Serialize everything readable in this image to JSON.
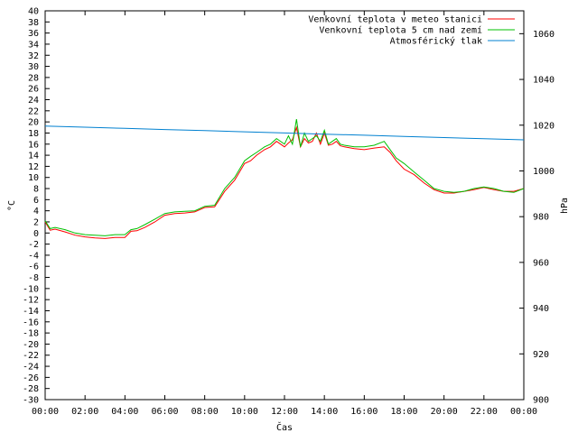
{
  "chart_data": {
    "type": "line",
    "xlabel": "Čas",
    "ylabel": "°C",
    "y2label": "hPa",
    "x_ticks": [
      "00:00",
      "02:00",
      "04:00",
      "06:00",
      "08:00",
      "10:00",
      "12:00",
      "14:00",
      "16:00",
      "18:00",
      "20:00",
      "22:00",
      "00:00"
    ],
    "xlim": [
      0,
      24
    ],
    "ylim": [
      -30,
      40
    ],
    "y_ticks": [
      40,
      38,
      36,
      34,
      32,
      30,
      28,
      26,
      24,
      22,
      20,
      18,
      16,
      14,
      12,
      10,
      8,
      6,
      4,
      2,
      0,
      -2,
      -4,
      -6,
      -8,
      -10,
      -12,
      -14,
      -16,
      -18,
      -20,
      -22,
      -24,
      -26,
      -28,
      -30
    ],
    "y2lim": [
      900,
      1070
    ],
    "y2_ticks": [
      1060,
      1040,
      1020,
      1000,
      980,
      960,
      940,
      920,
      900
    ],
    "grid": false,
    "legend_position": "top-right",
    "series": [
      {
        "name": "Venkovní teplota v meteo stanici",
        "color": "#ff0000",
        "axis": "left",
        "x": [
          0,
          0.25,
          0.5,
          1,
          1.5,
          2,
          2.5,
          3,
          3.5,
          4,
          4.3,
          4.6,
          5,
          5.5,
          6,
          6.5,
          7,
          7.5,
          8,
          8.5,
          9,
          9.5,
          10,
          10.3,
          10.6,
          11,
          11.3,
          11.6,
          12,
          12.2,
          12.4,
          12.6,
          12.8,
          13,
          13.2,
          13.4,
          13.6,
          13.8,
          14,
          14.2,
          14.4,
          14.6,
          14.8,
          15,
          15.5,
          16,
          16.5,
          17,
          17.3,
          17.6,
          18,
          18.5,
          19,
          19.5,
          20,
          20.5,
          21,
          21.5,
          22,
          22.5,
          23,
          23.5,
          24
        ],
        "values": [
          2.0,
          0.5,
          0.7,
          0.2,
          -0.4,
          -0.7,
          -0.9,
          -1.0,
          -0.8,
          -0.8,
          0.3,
          0.4,
          1.0,
          2.0,
          3.2,
          3.5,
          3.6,
          3.8,
          4.6,
          4.7,
          7.5,
          9.5,
          12.5,
          13.0,
          14.0,
          15.0,
          15.5,
          16.5,
          15.5,
          16.2,
          16.8,
          19.0,
          15.5,
          17.0,
          16.2,
          16.5,
          18.0,
          16.0,
          18.0,
          15.8,
          16.0,
          16.5,
          15.7,
          15.5,
          15.2,
          15.0,
          15.3,
          15.5,
          14.5,
          13.0,
          11.5,
          10.5,
          9.0,
          7.8,
          7.2,
          7.2,
          7.5,
          7.8,
          8.2,
          7.8,
          7.5,
          7.5,
          8.0
        ]
      },
      {
        "name": "Venkovní teplota 5 cm nad zemí",
        "color": "#00c000",
        "axis": "left",
        "x": [
          0,
          0.25,
          0.5,
          1,
          1.5,
          2,
          2.5,
          3,
          3.5,
          4,
          4.3,
          4.6,
          5,
          5.5,
          6,
          6.5,
          7,
          7.5,
          8,
          8.5,
          9,
          9.5,
          10,
          10.3,
          10.6,
          11,
          11.3,
          11.6,
          12,
          12.2,
          12.4,
          12.6,
          12.8,
          13,
          13.2,
          13.4,
          13.6,
          13.8,
          14,
          14.2,
          14.4,
          14.6,
          14.8,
          15,
          15.5,
          16,
          16.5,
          17,
          17.3,
          17.6,
          18,
          18.5,
          19,
          19.5,
          20,
          20.5,
          21,
          21.5,
          22,
          22.5,
          23,
          23.5,
          24
        ],
        "values": [
          2.2,
          0.8,
          1.0,
          0.6,
          0.0,
          -0.3,
          -0.4,
          -0.5,
          -0.3,
          -0.3,
          0.6,
          0.8,
          1.5,
          2.5,
          3.5,
          3.8,
          3.9,
          4.0,
          4.8,
          5.0,
          8.0,
          10.0,
          13.0,
          13.8,
          14.5,
          15.5,
          16.0,
          17.0,
          16.0,
          17.5,
          16.0,
          20.5,
          15.5,
          18.0,
          16.5,
          17.0,
          17.5,
          16.5,
          18.5,
          16.0,
          16.5,
          17.0,
          16.0,
          15.8,
          15.5,
          15.5,
          15.8,
          16.5,
          15.0,
          13.5,
          12.5,
          11.0,
          9.5,
          8.0,
          7.5,
          7.3,
          7.5,
          8.0,
          8.3,
          8.0,
          7.5,
          7.3,
          8.0
        ]
      },
      {
        "name": "Atmosférický tlak",
        "color": "#0080d0",
        "axis": "right",
        "x": [
          0,
          2,
          4,
          6,
          8,
          10,
          12,
          14,
          16,
          18,
          20,
          22,
          24
        ],
        "values": [
          1019.6,
          1019.1,
          1018.6,
          1018.1,
          1017.6,
          1017.1,
          1016.6,
          1016.1,
          1015.6,
          1015.1,
          1014.6,
          1014.1,
          1013.6
        ]
      }
    ]
  }
}
